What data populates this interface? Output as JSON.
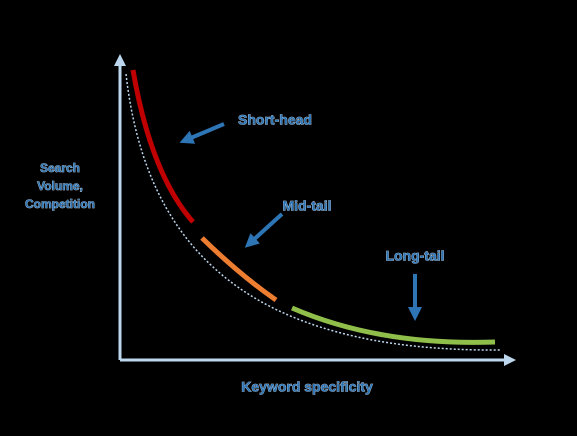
{
  "axes": {
    "y_label": [
      "Search",
      "Volume,",
      "Competition"
    ],
    "x_label": "Keyword specificity"
  },
  "segments": [
    {
      "label": "Short-head"
    },
    {
      "label": "Mid-tail"
    },
    {
      "label": "Long-tail"
    }
  ]
}
